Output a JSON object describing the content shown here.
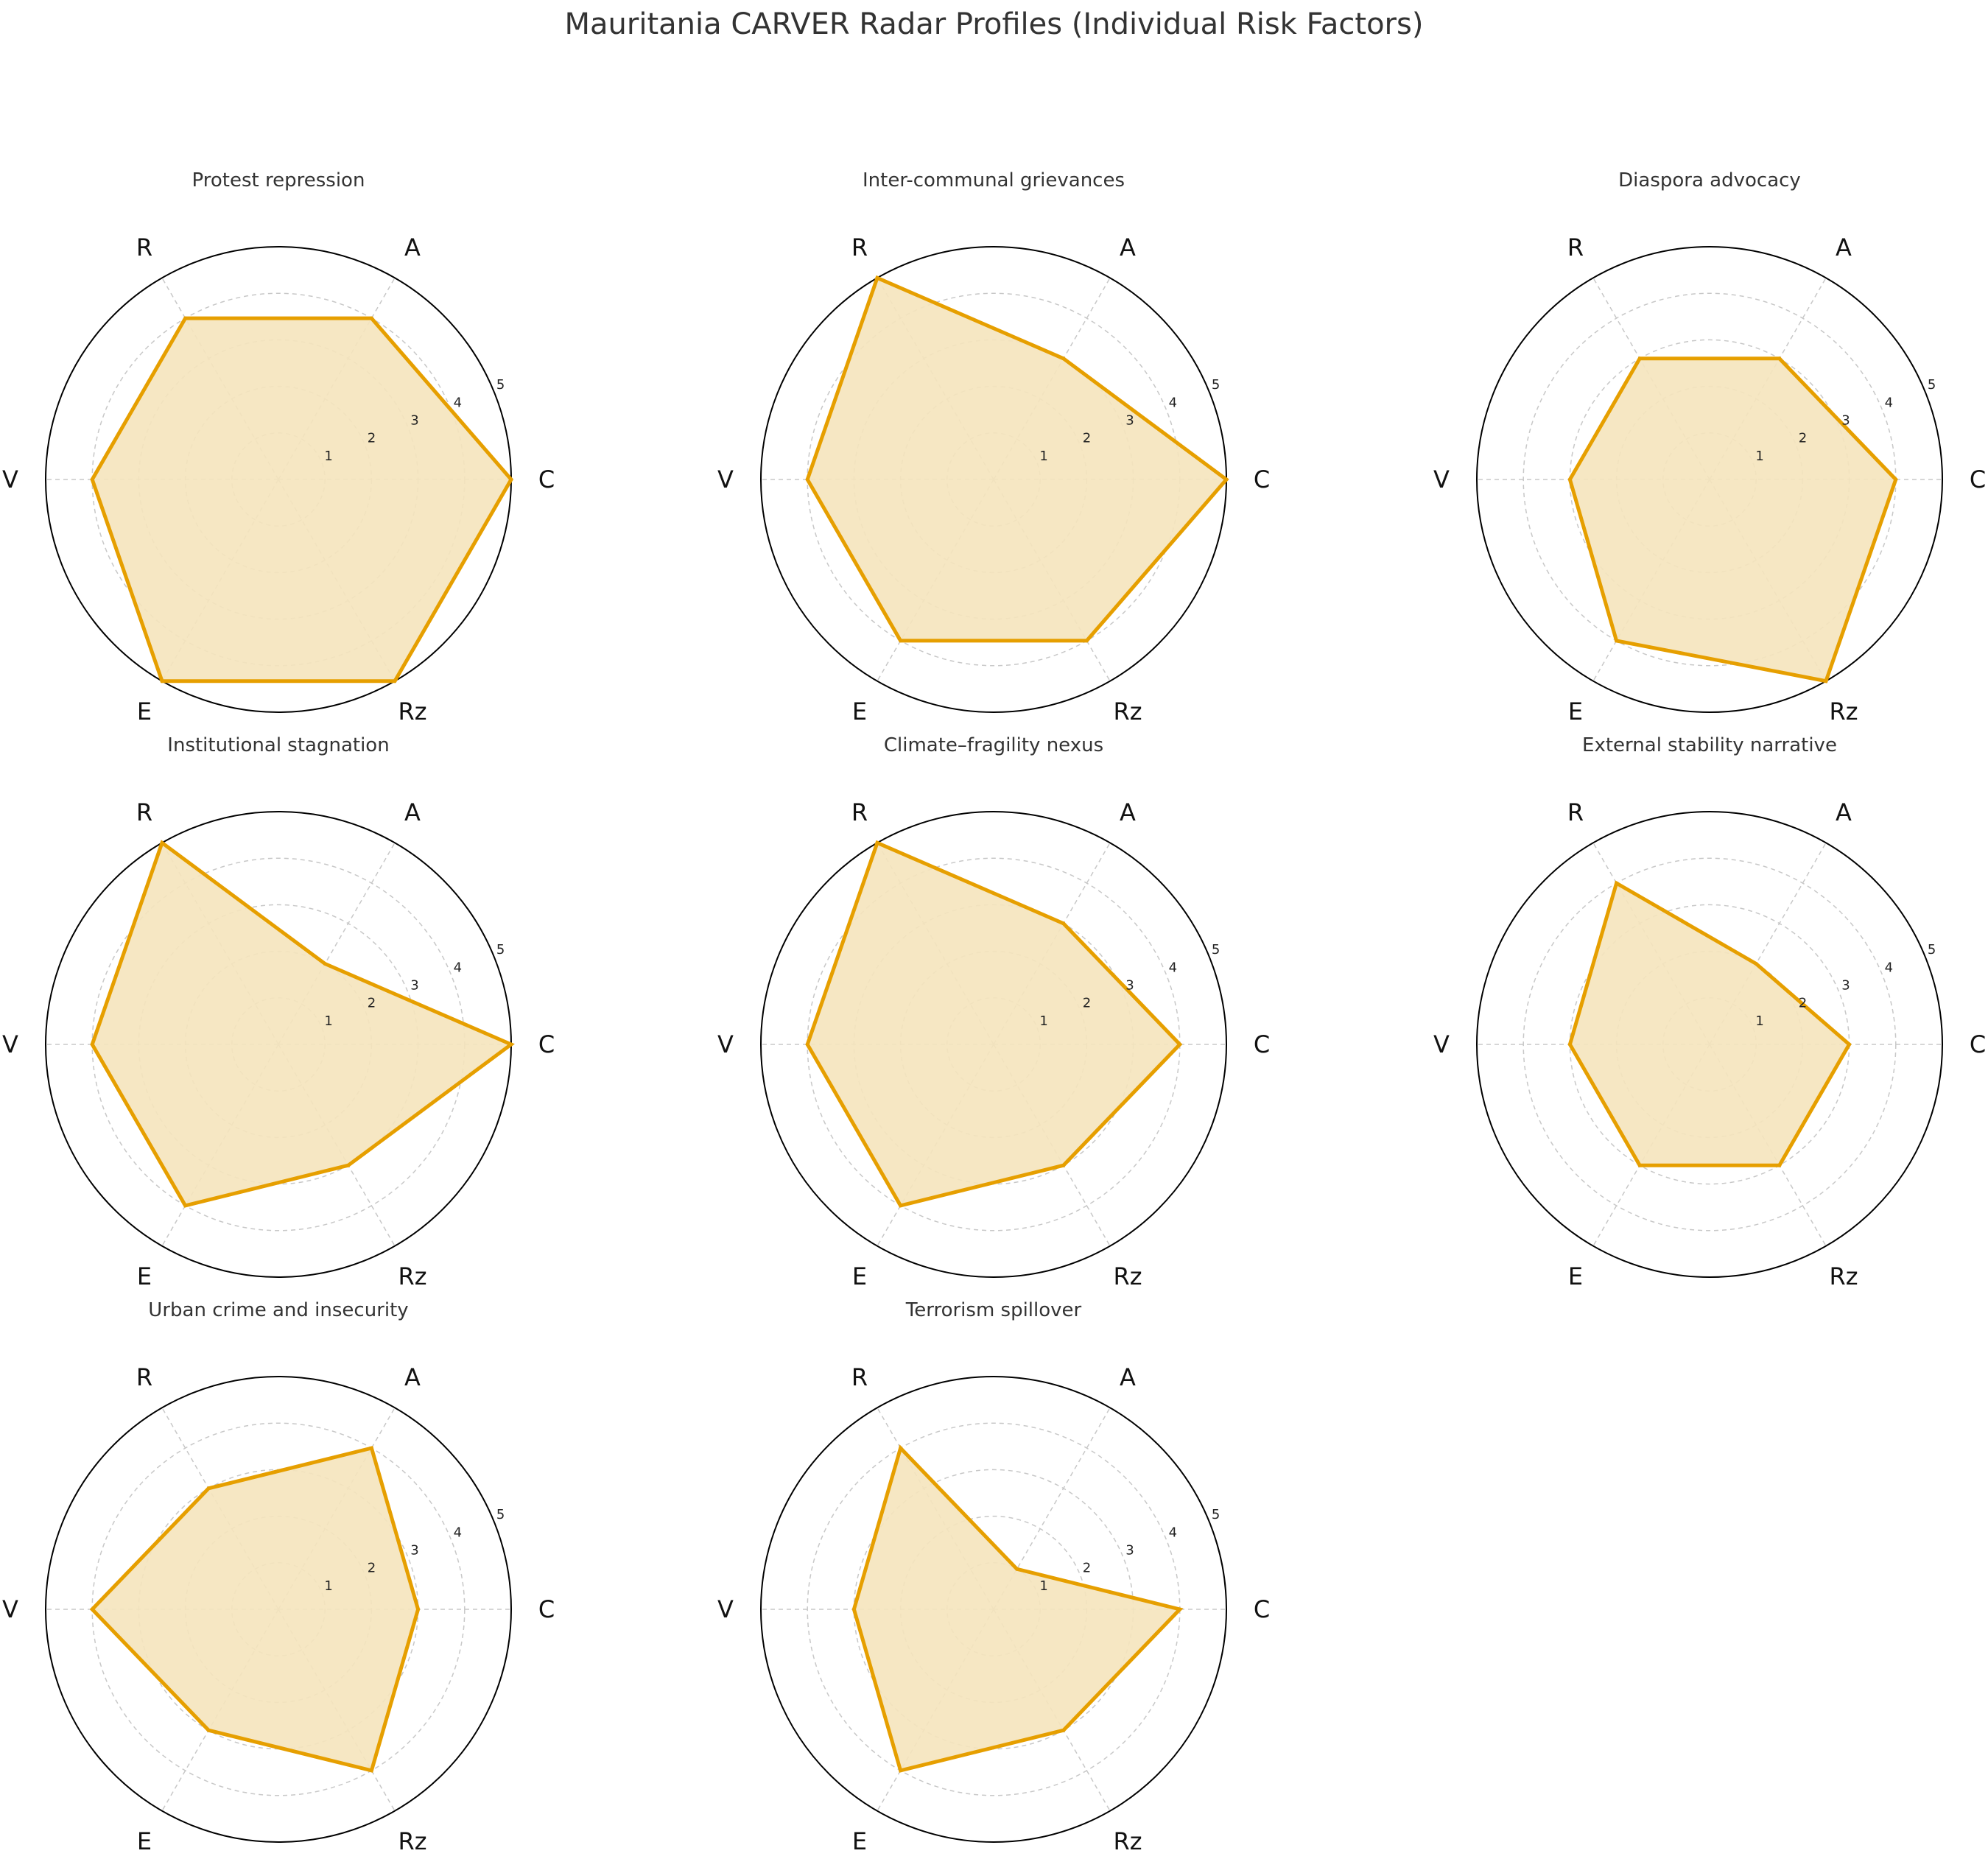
{
  "figure": {
    "title": "Mauritania CARVER Radar Profiles (Individual Risk Factors)"
  },
  "colors": {
    "series_line": "#e69f00",
    "series_fill": "#f5e4bd",
    "grid": "#c8c8c8",
    "outline": "#000000",
    "title_text": "#333333"
  },
  "chart_data": [
    {
      "type": "radar",
      "title": "Protest repression",
      "axes": [
        "C",
        "A",
        "R",
        "V",
        "E",
        "Rz"
      ],
      "ticks": [
        1,
        2,
        3,
        4,
        5
      ],
      "rlim": [
        0,
        5
      ],
      "values": [
        5,
        4,
        4,
        4,
        5,
        5
      ]
    },
    {
      "type": "radar",
      "title": "Inter-communal grievances",
      "axes": [
        "C",
        "A",
        "R",
        "V",
        "E",
        "Rz"
      ],
      "ticks": [
        1,
        2,
        3,
        4,
        5
      ],
      "rlim": [
        0,
        5
      ],
      "values": [
        5,
        3,
        5,
        4,
        4,
        4
      ]
    },
    {
      "type": "radar",
      "title": "Diaspora advocacy",
      "axes": [
        "C",
        "A",
        "R",
        "V",
        "E",
        "Rz"
      ],
      "ticks": [
        1,
        2,
        3,
        4,
        5
      ],
      "rlim": [
        0,
        5
      ],
      "values": [
        4,
        3,
        3,
        3,
        4,
        5
      ]
    },
    {
      "type": "radar",
      "title": "Institutional stagnation",
      "axes": [
        "C",
        "A",
        "R",
        "V",
        "E",
        "Rz"
      ],
      "ticks": [
        1,
        2,
        3,
        4,
        5
      ],
      "rlim": [
        0,
        5
      ],
      "values": [
        5,
        2,
        5,
        4,
        4,
        3
      ]
    },
    {
      "type": "radar",
      "title": "Climate–fragility nexus",
      "axes": [
        "C",
        "A",
        "R",
        "V",
        "E",
        "Rz"
      ],
      "ticks": [
        1,
        2,
        3,
        4,
        5
      ],
      "rlim": [
        0,
        5
      ],
      "values": [
        4,
        3,
        5,
        4,
        4,
        3
      ]
    },
    {
      "type": "radar",
      "title": "External stability narrative",
      "axes": [
        "C",
        "A",
        "R",
        "V",
        "E",
        "Rz"
      ],
      "ticks": [
        1,
        2,
        3,
        4,
        5
      ],
      "rlim": [
        0,
        5
      ],
      "values": [
        3,
        2,
        4,
        3,
        3,
        3
      ]
    },
    {
      "type": "radar",
      "title": "Urban crime and insecurity",
      "axes": [
        "C",
        "A",
        "R",
        "V",
        "E",
        "Rz"
      ],
      "ticks": [
        1,
        2,
        3,
        4,
        5
      ],
      "rlim": [
        0,
        5
      ],
      "values": [
        3,
        4,
        3,
        4,
        3,
        4
      ]
    },
    {
      "type": "radar",
      "title": "Terrorism spillover",
      "axes": [
        "C",
        "A",
        "R",
        "V",
        "E",
        "Rz"
      ],
      "ticks": [
        1,
        2,
        3,
        4,
        5
      ],
      "rlim": [
        0,
        5
      ],
      "values": [
        4,
        1,
        4,
        3,
        4,
        3
      ]
    }
  ]
}
